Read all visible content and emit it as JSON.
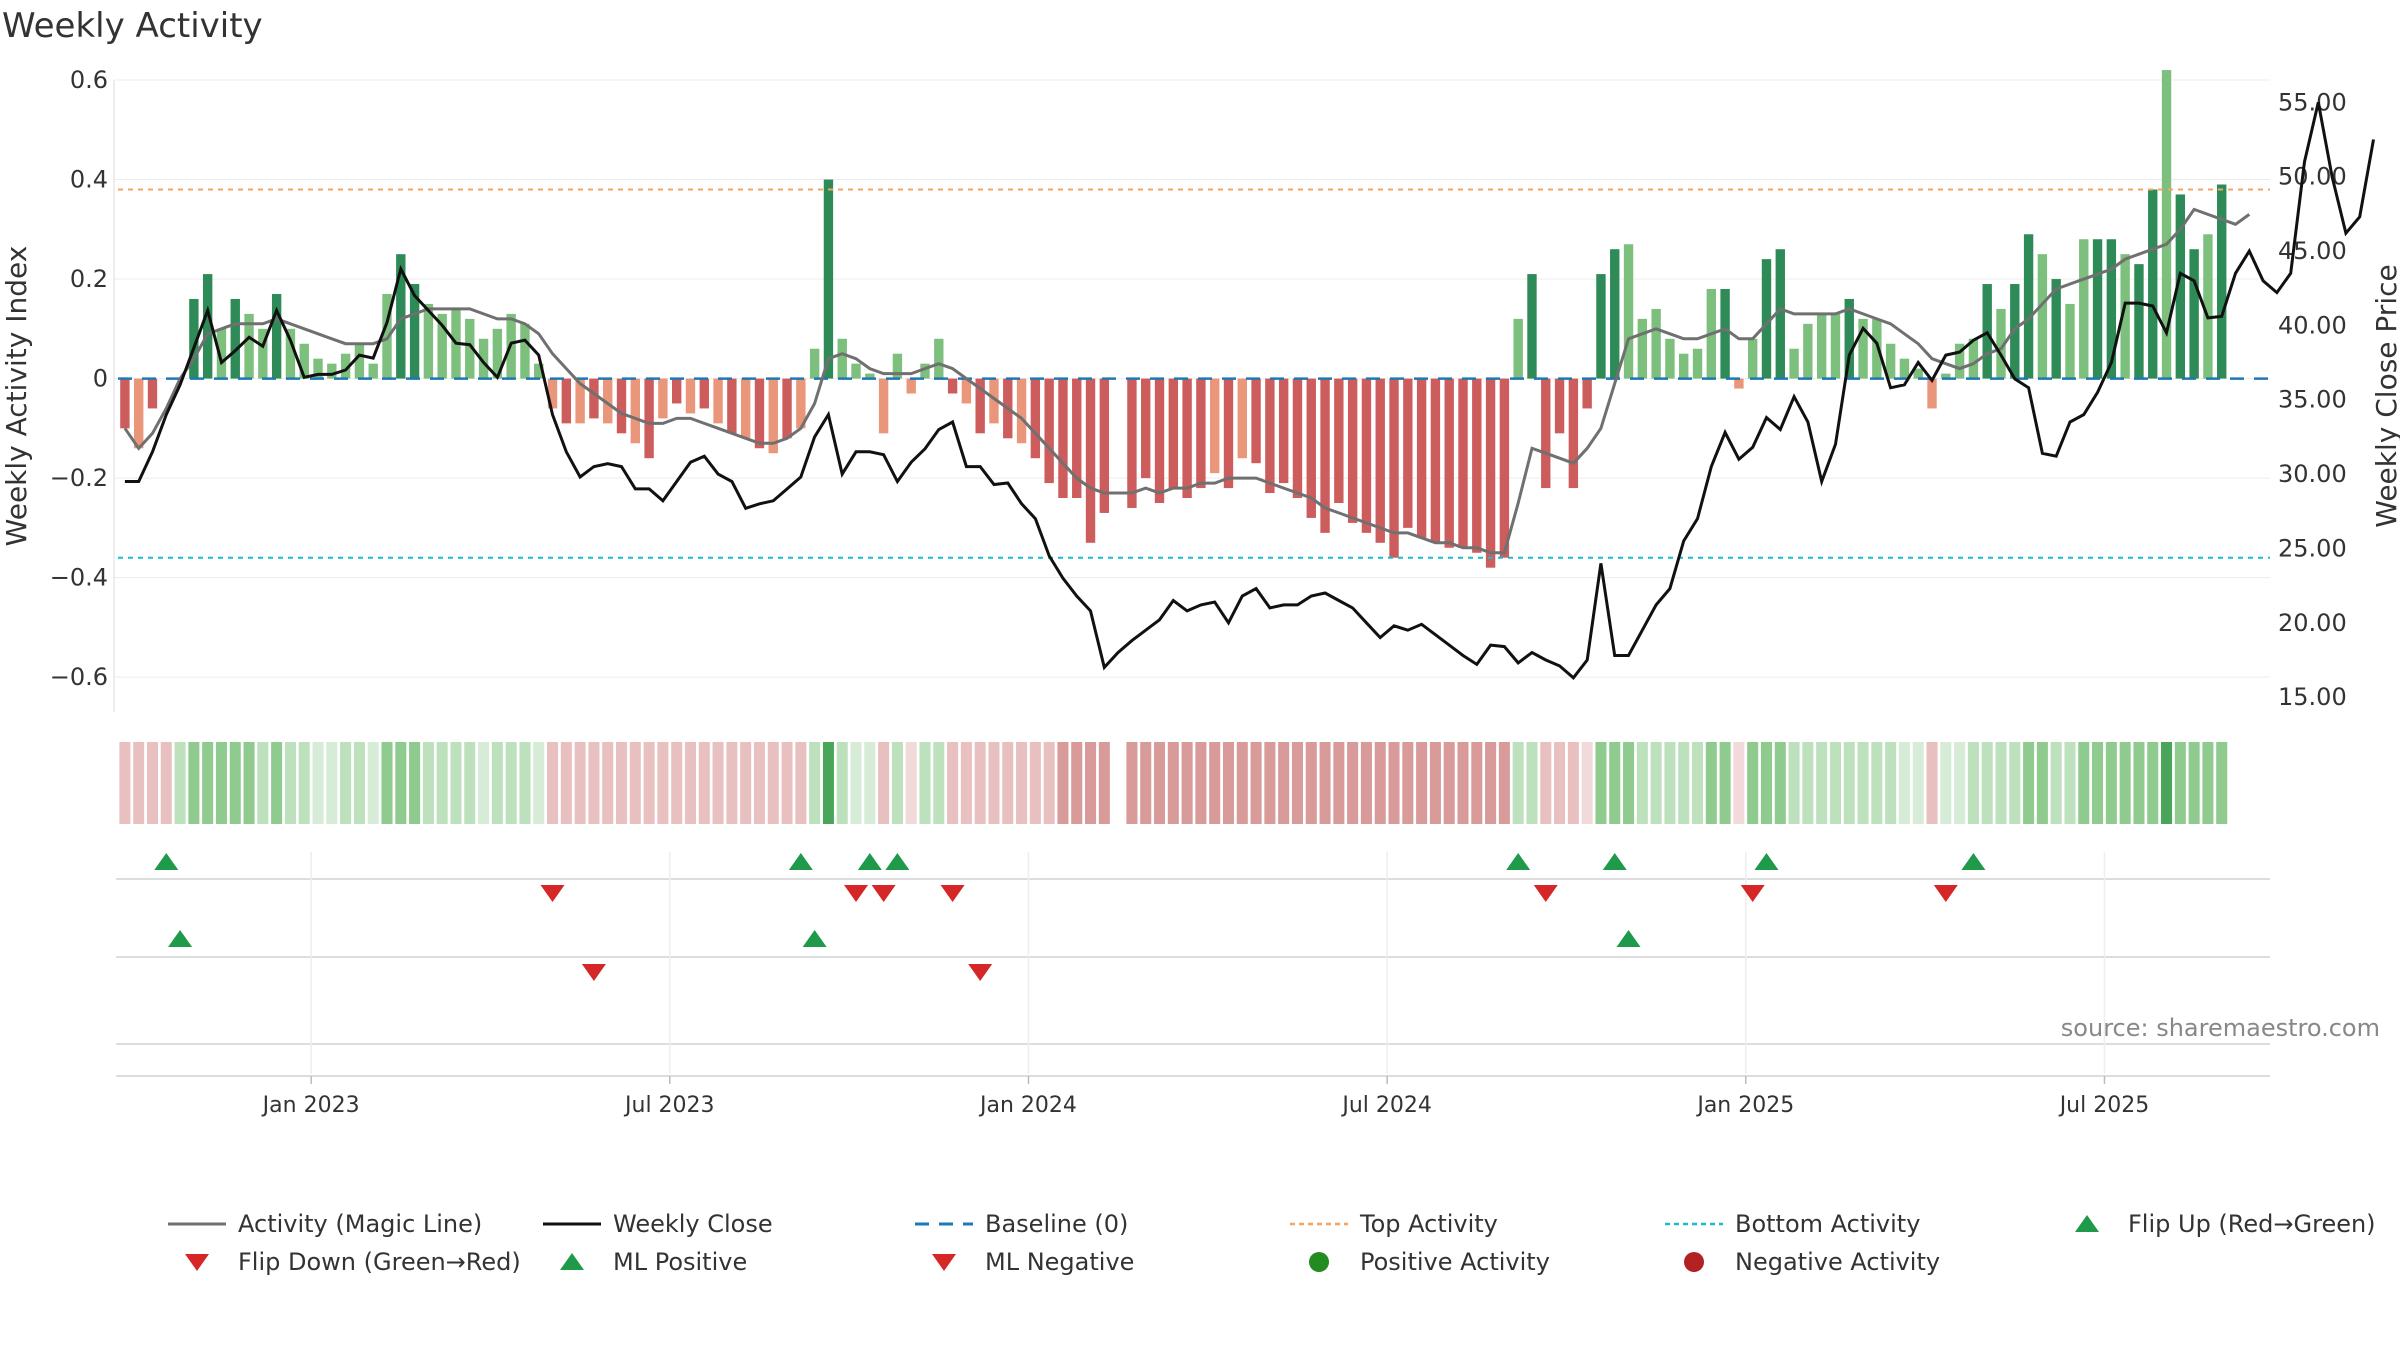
{
  "chart_data": {
    "type": "bar",
    "title": "Weekly Activity",
    "source": "source: sharemaestro.com",
    "ylabel": "Weekly Activity Index",
    "y2label": "Weekly Close Price",
    "ylim": [
      -0.67,
      0.6
    ],
    "y2lim": [
      14.0,
      56.5
    ],
    "yticks": [
      {
        "value": 0.6,
        "label": "0.6"
      },
      {
        "value": 0.4,
        "label": "0.4"
      },
      {
        "value": 0.2,
        "label": "0.2"
      },
      {
        "value": 0,
        "label": "0"
      },
      {
        "value": -0.2,
        "label": "−0.2"
      },
      {
        "value": -0.4,
        "label": "−0.4"
      },
      {
        "value": -0.6,
        "label": "−0.6"
      }
    ],
    "y2ticks": [
      {
        "value": 55,
        "label": "55.00"
      },
      {
        "value": 50,
        "label": "50.00"
      },
      {
        "value": 45,
        "label": "45.00"
      },
      {
        "value": 40,
        "label": "40.00"
      },
      {
        "value": 35,
        "label": "35.00"
      },
      {
        "value": 30,
        "label": "30.00"
      },
      {
        "value": 25,
        "label": "25.00"
      },
      {
        "value": 20,
        "label": "20.00"
      },
      {
        "value": 15,
        "label": "15.00"
      }
    ],
    "xticks": [
      {
        "week": 14,
        "label": "Jan 2023"
      },
      {
        "week": 40,
        "label": "Jul 2023"
      },
      {
        "week": 66,
        "label": "Jan 2024"
      },
      {
        "week": 92,
        "label": "Jul 2024"
      },
      {
        "week": 118,
        "label": "Jan 2025"
      },
      {
        "week": 144,
        "label": "Jul 2025"
      }
    ],
    "n_weeks": 156,
    "top_activity": 0.38,
    "bottom_activity": -0.36,
    "baseline": 0,
    "activity": [
      -0.1,
      -0.14,
      -0.06,
      0,
      0,
      0.16,
      0.21,
      0.1,
      0.16,
      0.13,
      0.1,
      0.17,
      0.1,
      0.07,
      0.04,
      0.03,
      0.05,
      0.07,
      0.03,
      0.17,
      0.25,
      0.19,
      0.15,
      0.13,
      0.14,
      0.12,
      0.08,
      0.1,
      0.13,
      0.11,
      0.03,
      -0.06,
      -0.09,
      -0.09,
      -0.08,
      -0.09,
      -0.11,
      -0.13,
      -0.16,
      -0.08,
      -0.05,
      -0.07,
      -0.06,
      -0.09,
      -0.11,
      -0.12,
      -0.14,
      -0.15,
      -0.12,
      -0.1,
      0.06,
      0.4,
      0.08,
      0.03,
      0.01,
      -0.11,
      0.05,
      -0.03,
      0.03,
      0.08,
      -0.03,
      -0.05,
      -0.11,
      -0.09,
      -0.12,
      -0.13,
      -0.16,
      -0.21,
      -0.24,
      -0.24,
      -0.33,
      -0.27,
      0,
      -0.26,
      -0.2,
      -0.25,
      -0.22,
      -0.24,
      -0.22,
      -0.19,
      -0.22,
      -0.16,
      -0.17,
      -0.23,
      -0.21,
      -0.24,
      -0.28,
      -0.31,
      -0.25,
      -0.29,
      -0.31,
      -0.33,
      -0.36,
      -0.3,
      -0.32,
      -0.33,
      -0.34,
      -0.34,
      -0.35,
      -0.38,
      -0.36,
      0.12,
      0.21,
      -0.22,
      -0.11,
      -0.22,
      -0.06,
      0.21,
      0.26,
      0.27,
      0.12,
      0.14,
      0.08,
      0.05,
      0.06,
      0.18,
      0.18,
      -0.02,
      0.08,
      0.24,
      0.26,
      0.06,
      0.11,
      0.13,
      0.13,
      0.16,
      0.12,
      0.12,
      0.07,
      0.04,
      0.02,
      -0.06,
      0.01,
      0.07,
      0.08,
      0.19,
      0.14,
      0.19,
      0.29,
      0.25,
      0.2,
      0.15,
      0.28,
      0.28,
      0.28,
      0.25,
      0.23,
      0.38,
      0.62,
      0.37,
      0.26,
      0.29,
      0.39
    ],
    "magic_line": [
      -0.1,
      -0.14,
      -0.11,
      -0.06,
      0,
      0.04,
      0.09,
      0.1,
      0.11,
      0.11,
      0.11,
      0.12,
      0.11,
      0.1,
      0.09,
      0.08,
      0.07,
      0.07,
      0.07,
      0.08,
      0.12,
      0.13,
      0.14,
      0.14,
      0.14,
      0.14,
      0.13,
      0.12,
      0.12,
      0.11,
      0.09,
      0.05,
      0.02,
      -0.01,
      -0.03,
      -0.05,
      -0.07,
      -0.08,
      -0.09,
      -0.09,
      -0.08,
      -0.08,
      -0.09,
      -0.1,
      -0.11,
      -0.12,
      -0.13,
      -0.13,
      -0.12,
      -0.1,
      -0.05,
      0.04,
      0.05,
      0.04,
      0.02,
      0.01,
      0.01,
      0.01,
      0.02,
      0.03,
      0.02,
      0,
      -0.02,
      -0.04,
      -0.06,
      -0.08,
      -0.11,
      -0.14,
      -0.17,
      -0.2,
      -0.22,
      -0.23,
      -0.23,
      -0.23,
      -0.22,
      -0.23,
      -0.22,
      -0.22,
      -0.21,
      -0.21,
      -0.2,
      -0.2,
      -0.2,
      -0.21,
      -0.22,
      -0.23,
      -0.24,
      -0.26,
      -0.27,
      -0.28,
      -0.29,
      -0.3,
      -0.31,
      -0.31,
      -0.32,
      -0.33,
      -0.33,
      -0.34,
      -0.34,
      -0.35,
      -0.35,
      -0.25,
      -0.14,
      -0.15,
      -0.16,
      -0.17,
      -0.14,
      -0.1,
      -0.01,
      0.08,
      0.09,
      0.1,
      0.09,
      0.08,
      0.08,
      0.09,
      0.1,
      0.08,
      0.08,
      0.11,
      0.14,
      0.13,
      0.13,
      0.13,
      0.13,
      0.14,
      0.13,
      0.12,
      0.11,
      0.09,
      0.07,
      0.04,
      0.03,
      0.02,
      0.03,
      0.05,
      0.06,
      0.1,
      0.12,
      0.15,
      0.18,
      0.19,
      0.2,
      0.21,
      0.22,
      0.24,
      0.25,
      0.26,
      0.27,
      0.3,
      0.34,
      0.33,
      0.32,
      0.31,
      0.33
    ],
    "weekly_close": [
      29.5,
      29.5,
      31.5,
      34.0,
      36.0,
      38.5,
      41.0,
      37.5,
      38.3,
      39.2,
      38.6,
      41.0,
      39.0,
      36.5,
      36.7,
      36.7,
      37.0,
      38.0,
      37.8,
      40.2,
      43.8,
      42.0,
      41.0,
      40.0,
      38.8,
      38.7,
      37.5,
      36.5,
      38.8,
      39.0,
      38.0,
      34.0,
      31.5,
      29.8,
      30.5,
      30.7,
      30.5,
      29.0,
      29.0,
      28.2,
      29.5,
      30.8,
      31.2,
      30.0,
      29.5,
      27.7,
      28.0,
      28.2,
      29.0,
      29.8,
      32.5,
      34.0,
      30.0,
      31.5,
      31.5,
      31.3,
      29.5,
      30.8,
      31.7,
      33.0,
      33.5,
      30.5,
      30.5,
      29.3,
      29.4,
      28.0,
      27.0,
      24.5,
      23.0,
      21.8,
      20.8,
      17.0,
      18.0,
      18.8,
      19.5,
      20.2,
      21.5,
      20.8,
      21.2,
      21.4,
      20.0,
      21.8,
      22.3,
      21.0,
      21.2,
      21.2,
      21.8,
      22.0,
      21.5,
      21.0,
      20.0,
      19.0,
      19.8,
      19.5,
      19.9,
      19.2,
      18.5,
      17.8,
      17.2,
      18.5,
      18.4,
      17.3,
      18.0,
      17.5,
      17.1,
      16.3,
      17.5,
      24.0,
      17.8,
      17.8,
      19.5,
      21.2,
      22.3,
      25.5,
      27.0,
      30.5,
      32.8,
      31.0,
      31.8,
      33.8,
      33.0,
      35.2,
      33.5,
      29.5,
      32.0,
      38.0,
      39.8,
      38.8,
      35.8,
      36.0,
      37.5,
      36.3,
      38.0,
      38.2,
      39.0,
      39.5,
      38.0,
      36.4,
      35.8,
      31.4,
      31.2,
      33.5,
      34.0,
      35.5,
      37.5,
      41.5,
      41.5,
      41.3,
      39.5,
      43.5,
      43.0,
      40.5,
      40.6,
      43.5,
      45.0,
      43.0,
      42.2,
      43.5,
      51.0,
      55.0,
      50.0,
      46.2,
      47.3,
      52.5
    ],
    "activity_strip": [
      "nr2",
      "nr2",
      "nr2",
      "nr2",
      "ng2",
      "ng3",
      "ng3",
      "ng3",
      "ng3",
      "ng3",
      "ng2",
      "ng3",
      "ng2",
      "ng2",
      "ng1",
      "ng1",
      "ng2",
      "ng2",
      "ng1",
      "ng3",
      "ng3",
      "ng3",
      "ng2",
      "ng2",
      "ng2",
      "ng2",
      "ng1",
      "ng2",
      "ng2",
      "ng2",
      "ng1",
      "nr2",
      "nr2",
      "nr2",
      "nr2",
      "nr2",
      "nr2",
      "nr2",
      "nr2",
      "nr2",
      "nr2",
      "nr2",
      "nr2",
      "nr2",
      "nr2",
      "nr2",
      "nr2",
      "nr2",
      "nr2",
      "nr2",
      "ng2",
      "ng4",
      "ng2",
      "ng1",
      "ng1",
      "nr2",
      "ng2",
      "nr1",
      "ng2",
      "ng2",
      "nr2",
      "nr2",
      "nr2",
      "nr2",
      "nr2",
      "nr2",
      "nr2",
      "nr2",
      "nr3",
      "nr3",
      "nr3",
      "nr3",
      "gap",
      "nr3",
      "nr3",
      "nr3",
      "nr3",
      "nr3",
      "nr3",
      "nr3",
      "nr3",
      "nr3",
      "nr3",
      "nr3",
      "nr3",
      "nr3",
      "nr3",
      "nr3",
      "nr3",
      "nr3",
      "nr3",
      "nr3",
      "nr3",
      "nr3",
      "nr3",
      "nr3",
      "nr3",
      "nr3",
      "nr3",
      "nr3",
      "nr3",
      "ng2",
      "ng2",
      "nr2",
      "nr2",
      "nr2",
      "nr1",
      "ng3",
      "ng3",
      "ng3",
      "ng2",
      "ng2",
      "ng2",
      "ng2",
      "ng2",
      "ng3",
      "ng3",
      "nr1",
      "ng3",
      "ng3",
      "ng3",
      "ng2",
      "ng2",
      "ng2",
      "ng2",
      "ng2",
      "ng2",
      "ng2",
      "ng2",
      "ng1",
      "ng1",
      "nr2",
      "ng1",
      "ng1",
      "ng2",
      "ng2",
      "ng2",
      "ng2",
      "ng3",
      "ng3",
      "ng2",
      "ng2",
      "ng3",
      "ng3",
      "ng3",
      "ng3",
      "ng3",
      "ng3",
      "ng4",
      "ng3",
      "ng3",
      "ng3",
      "ng3"
    ],
    "flip_up": [
      3,
      49,
      54,
      56,
      101,
      108,
      119,
      134
    ],
    "flip_down": [
      31,
      53,
      55,
      60,
      103,
      118,
      132
    ],
    "ml_positive": [
      4,
      50,
      109
    ],
    "ml_negative": [
      34,
      62
    ],
    "legend": [
      {
        "label": "Activity (Magic Line)",
        "kind": "line-gray"
      },
      {
        "label": "Weekly Close",
        "kind": "line-black"
      },
      {
        "label": "Baseline (0)",
        "kind": "dash-blue"
      },
      {
        "label": "Top Activity",
        "kind": "dot-orange"
      },
      {
        "label": "Bottom Activity",
        "kind": "dot-cyan"
      },
      {
        "label": "Flip Up (Red→Green)",
        "kind": "tri-up"
      },
      {
        "label": "Flip Down (Green→Red)",
        "kind": "tri-down"
      },
      {
        "label": "ML Positive",
        "kind": "tri-up"
      },
      {
        "label": "ML Negative",
        "kind": "tri-down"
      },
      {
        "label": "Positive Activity",
        "kind": "circle-green"
      },
      {
        "label": "Negative Activity",
        "kind": "circle-red"
      }
    ],
    "colors": {
      "pos_strong": "#2e8b57",
      "pos_light": "#7dbf7d",
      "neg_strong": "#cd5c5c",
      "neg_light": "#e9967a",
      "magic_line": "#707070",
      "close": "#111111",
      "baseline": "#1f77b4",
      "top": "#f4a460",
      "bottom": "#17becf",
      "tri_up": "#1e9a4a",
      "tri_down": "#d62728",
      "circle_green": "#228b22",
      "circle_red": "#b22222"
    }
  }
}
